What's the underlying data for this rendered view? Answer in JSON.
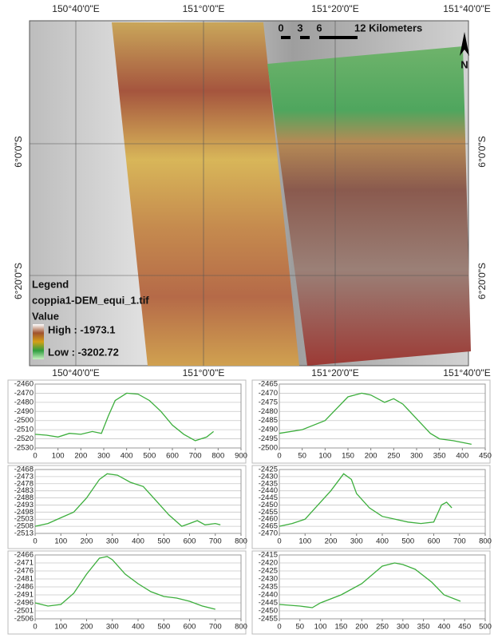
{
  "map": {
    "top_labels": [
      "150°40'0\"E",
      "151°0'0\"E",
      "151°20'0\"E",
      "151°40'0\"E"
    ],
    "bottom_labels": [
      "150°40'0\"E",
      "151°0'0\"E",
      "151°20'0\"E",
      "151°40'0\"E"
    ],
    "left_labels": [
      "6°0'0\"S",
      "6°20'0\"S"
    ],
    "right_labels": [
      "6°0'0\"S",
      "6°20'0\"S"
    ],
    "scale_labels": [
      "0",
      "3",
      "6",
      "12 Kilometers"
    ],
    "north": "N",
    "legend": {
      "title": "Legend",
      "file": "coppia1-DEM_equi_1.tif",
      "field": "Value",
      "high": "High : -1973.1",
      "low": "Low : -3202.72"
    }
  },
  "chart_data": [
    {
      "type": "line",
      "x": [
        0,
        50,
        100,
        150,
        200,
        250,
        290,
        320,
        350,
        400,
        450,
        500,
        550,
        600,
        650,
        700,
        750,
        780
      ],
      "series": [
        {
          "color": "#3cae3c",
          "values": [
            -2515,
            -2516,
            -2518,
            -2514,
            -2515,
            -2512,
            -2514,
            -2495,
            -2478,
            -2470,
            -2471,
            -2478,
            -2490,
            -2505,
            -2515,
            -2522,
            -2518,
            -2512
          ]
        }
      ],
      "xlim": [
        0,
        900
      ],
      "xticks": [
        0,
        100,
        200,
        300,
        400,
        500,
        600,
        700,
        800,
        900
      ],
      "ylim": [
        -2530,
        -2460
      ],
      "yticks": [
        -2460,
        -2470,
        -2480,
        -2490,
        -2500,
        -2510,
        -2520,
        -2530
      ],
      "grid": true
    },
    {
      "type": "line",
      "x": [
        0,
        50,
        100,
        150,
        180,
        200,
        230,
        250,
        270,
        300,
        330,
        350,
        380,
        420
      ],
      "series": [
        {
          "color": "#3cae3c",
          "values": [
            -2492,
            -2490,
            -2485,
            -2472,
            -2470,
            -2471,
            -2475,
            -2473,
            -2476,
            -2484,
            -2492,
            -2495,
            -2496,
            -2498
          ]
        }
      ],
      "xlim": [
        0,
        450
      ],
      "xticks": [
        0,
        50,
        100,
        150,
        200,
        250,
        300,
        350,
        400,
        450
      ],
      "ylim": [
        -2500,
        -2465
      ],
      "yticks": [
        -2465,
        -2470,
        -2475,
        -2480,
        -2485,
        -2490,
        -2495,
        -2500
      ],
      "grid": true
    },
    {
      "type": "line",
      "x": [
        0,
        50,
        100,
        150,
        200,
        250,
        280,
        320,
        370,
        420,
        470,
        520,
        570,
        600,
        630,
        660,
        700,
        720
      ],
      "series": [
        {
          "color": "#3cae3c",
          "values": [
            -2508,
            -2506,
            -2502,
            -2498,
            -2488,
            -2475,
            -2471,
            -2472,
            -2477,
            -2480,
            -2490,
            -2500,
            -2508,
            -2506,
            -2504,
            -2507,
            -2506,
            -2507
          ]
        }
      ],
      "xlim": [
        0,
        800
      ],
      "xticks": [
        0,
        100,
        200,
        300,
        400,
        500,
        600,
        700,
        800
      ],
      "ylim": [
        -2513,
        -2468
      ],
      "yticks": [
        -2468,
        -2473,
        -2478,
        -2483,
        -2488,
        -2493,
        -2498,
        -2503,
        -2508,
        -2513
      ],
      "grid": true
    },
    {
      "type": "line",
      "x": [
        0,
        50,
        100,
        150,
        200,
        250,
        280,
        300,
        350,
        400,
        450,
        500,
        550,
        600,
        630,
        650,
        670
      ],
      "series": [
        {
          "color": "#3cae3c",
          "values": [
            -2465,
            -2463,
            -2460,
            -2450,
            -2440,
            -2428,
            -2432,
            -2442,
            -2452,
            -2458,
            -2460,
            -2462,
            -2463,
            -2462,
            -2450,
            -2448,
            -2452
          ]
        }
      ],
      "xlim": [
        0,
        800
      ],
      "xticks": [
        0,
        100,
        200,
        300,
        400,
        500,
        600,
        700,
        800
      ],
      "ylim": [
        -2470,
        -2425
      ],
      "yticks": [
        -2425,
        -2430,
        -2435,
        -2440,
        -2445,
        -2450,
        -2455,
        -2460,
        -2465,
        -2470
      ],
      "grid": true
    },
    {
      "type": "line",
      "x": [
        0,
        50,
        100,
        150,
        200,
        250,
        280,
        300,
        350,
        400,
        450,
        500,
        550,
        600,
        650,
        700
      ],
      "series": [
        {
          "color": "#3cae3c",
          "values": [
            -2496,
            -2498,
            -2497,
            -2490,
            -2478,
            -2468,
            -2467,
            -2469,
            -2478,
            -2484,
            -2489,
            -2492,
            -2493,
            -2495,
            -2498,
            -2500
          ]
        }
      ],
      "xlim": [
        0,
        800
      ],
      "xticks": [
        0,
        100,
        200,
        300,
        400,
        500,
        600,
        700,
        800
      ],
      "ylim": [
        -2506,
        -2466
      ],
      "yticks": [
        -2466,
        -2471,
        -2476,
        -2481,
        -2486,
        -2491,
        -2496,
        -2501,
        -2506
      ],
      "grid": true
    },
    {
      "type": "line",
      "x": [
        0,
        50,
        80,
        100,
        150,
        200,
        250,
        280,
        300,
        330,
        370,
        400,
        440
      ],
      "series": [
        {
          "color": "#3cae3c",
          "values": [
            -2446,
            -2447,
            -2448,
            -2445,
            -2440,
            -2433,
            -2422,
            -2420,
            -2421,
            -2424,
            -2432,
            -2440,
            -2444
          ]
        }
      ],
      "xlim": [
        0,
        500
      ],
      "xticks": [
        0,
        50,
        100,
        150,
        200,
        250,
        300,
        350,
        400,
        450,
        500
      ],
      "ylim": [
        -2455,
        -2415
      ],
      "yticks": [
        -2415,
        -2420,
        -2425,
        -2430,
        -2435,
        -2440,
        -2445,
        -2450,
        -2455
      ],
      "grid": true
    }
  ]
}
